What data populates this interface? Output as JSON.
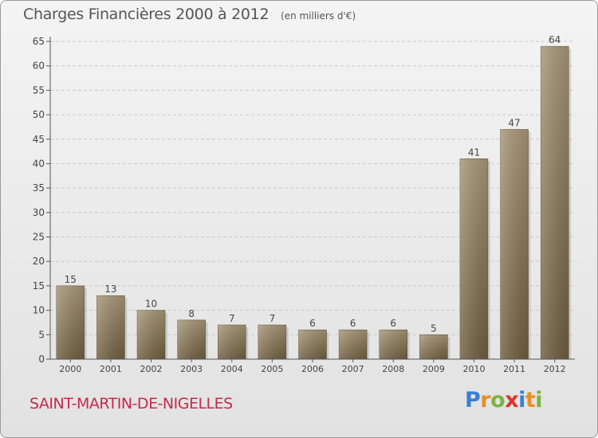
{
  "header": {
    "title": "Charges Financières 2000 à 2012",
    "subtitle": "(en milliers d'€)"
  },
  "footer": {
    "commune": "SAINT-MARTIN-DE-NIGELLES",
    "logo": {
      "letters": [
        "P",
        "r",
        "o",
        "x",
        "i",
        "t",
        "i"
      ],
      "colors": [
        "#3a7fd0",
        "#e5902a",
        "#7cb342",
        "#d9332e",
        "#3a7fd0",
        "#e5902a",
        "#7cb342"
      ]
    }
  },
  "colors": {
    "bar_top": "#a69577",
    "bar_bottom": "#6e5d3e",
    "axis": "#555555",
    "grid": "#c9c9c9",
    "commune": "#c8284b"
  },
  "chart_data": {
    "type": "bar",
    "categories": [
      "2000",
      "2001",
      "2002",
      "2003",
      "2004",
      "2005",
      "2006",
      "2007",
      "2008",
      "2009",
      "2010",
      "2011",
      "2012"
    ],
    "values": [
      15,
      13,
      10,
      8,
      7,
      7,
      6,
      6,
      6,
      5,
      41,
      47,
      64
    ],
    "data_labels": [
      "15",
      "13",
      "10",
      "8",
      "7",
      "7",
      "6",
      "6",
      "6",
      "5",
      "41",
      "47",
      "64"
    ],
    "yticks": [
      0,
      5,
      10,
      15,
      20,
      25,
      30,
      35,
      40,
      45,
      50,
      55,
      60,
      65
    ],
    "ylim": [
      0,
      65
    ],
    "grid": true,
    "grid_style": "dashed horizontal",
    "title": "Charges Financières 2000 à 2012",
    "xlabel": "",
    "ylabel": ""
  }
}
